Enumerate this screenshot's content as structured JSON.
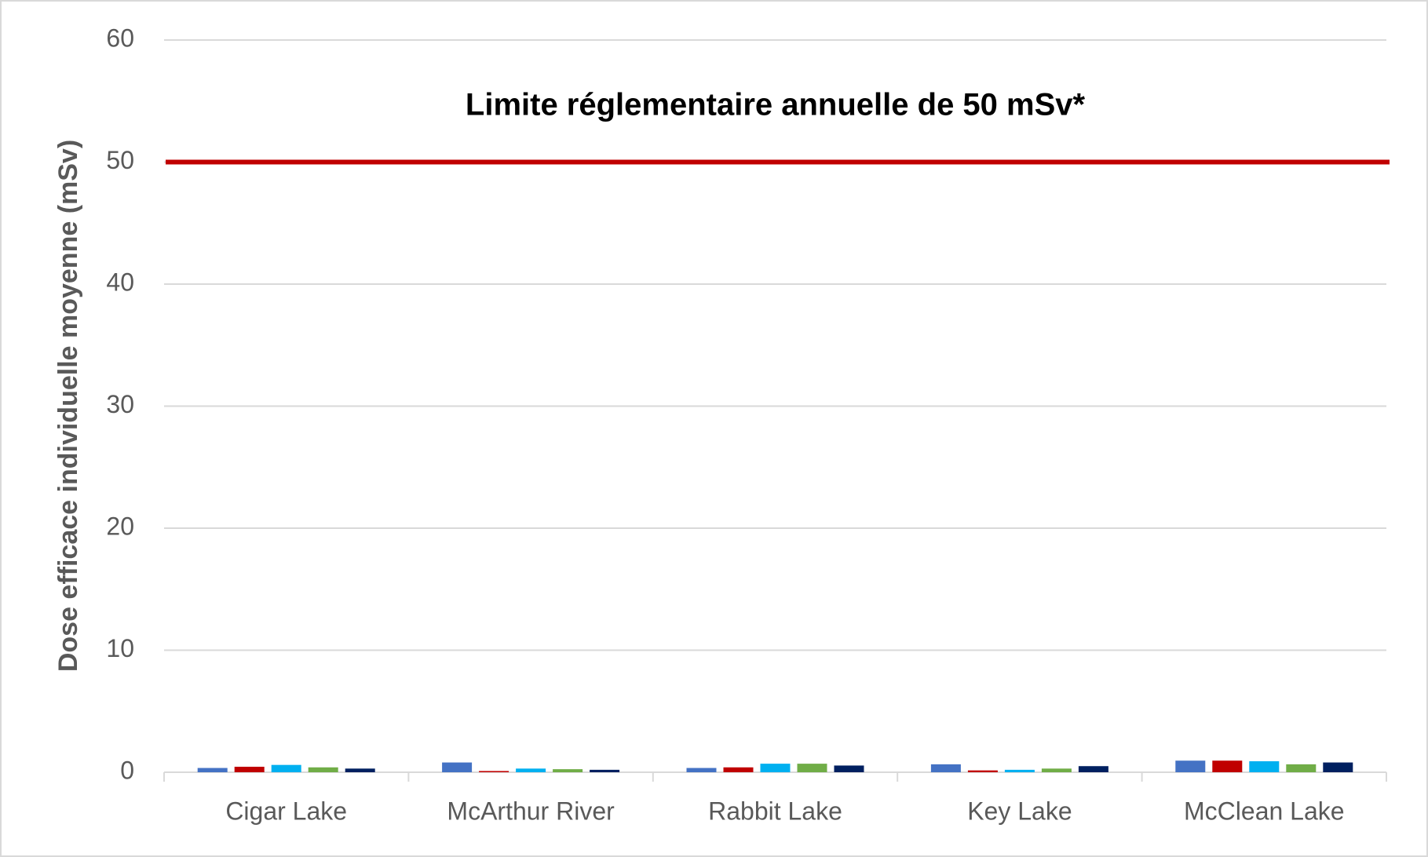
{
  "chart_data": {
    "type": "bar",
    "y_label": "Dose efficace individuelle moyenne (mSv)",
    "categories": [
      "Cigar Lake",
      "McArthur River",
      "Rabbit Lake",
      "Key Lake",
      "McClean Lake"
    ],
    "series": [
      {
        "color": "#4472c4",
        "values": [
          0.35,
          0.8,
          0.35,
          0.65,
          0.95
        ]
      },
      {
        "color": "#c00000",
        "values": [
          0.45,
          0.1,
          0.4,
          0.15,
          0.95
        ]
      },
      {
        "color": "#00b0f0",
        "values": [
          0.6,
          0.3,
          0.7,
          0.2,
          0.9
        ]
      },
      {
        "color": "#70ad47",
        "values": [
          0.4,
          0.25,
          0.7,
          0.3,
          0.65
        ]
      },
      {
        "color": "#002060",
        "values": [
          0.3,
          0.2,
          0.55,
          0.5,
          0.8
        ]
      }
    ],
    "ylim": [
      0,
      60
    ],
    "yticks": [
      0,
      10,
      20,
      30,
      40,
      50,
      60
    ],
    "grid": true,
    "reference_line": {
      "value": 50,
      "label": "Limite réglementaire annuelle de 50 mSv*",
      "color": "#c00000"
    }
  }
}
